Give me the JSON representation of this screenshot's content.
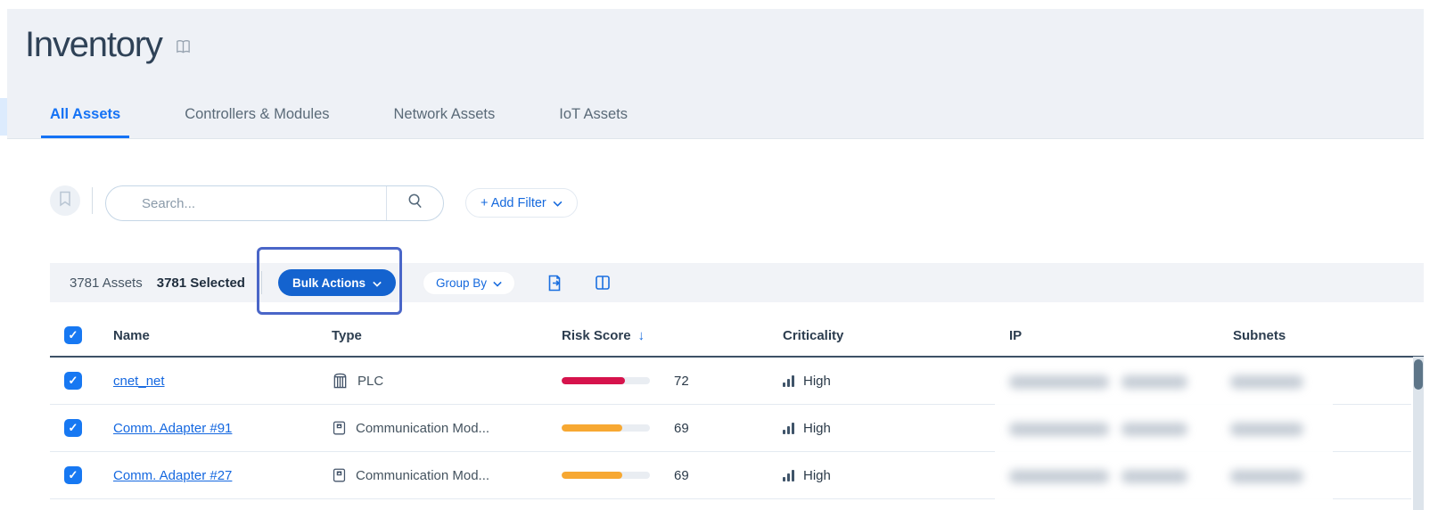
{
  "header": {
    "title": "Inventory"
  },
  "tabs": {
    "items": [
      {
        "label": "All Assets",
        "active": true
      },
      {
        "label": "Controllers & Modules",
        "active": false
      },
      {
        "label": "Network Assets",
        "active": false
      },
      {
        "label": "IoT Assets",
        "active": false
      }
    ]
  },
  "filter_bar": {
    "search_placeholder": "Search...",
    "add_filter_label": "+ Add Filter"
  },
  "toolbar": {
    "total_label": "3781 Assets",
    "selected_label": "3781 Selected",
    "bulk_actions_label": "Bulk Actions",
    "group_by_label": "Group By"
  },
  "table": {
    "columns": {
      "name": "Name",
      "type": "Type",
      "risk": "Risk Score",
      "criticality": "Criticality",
      "ip": "IP",
      "subnets": "Subnets"
    },
    "sort": {
      "column": "Risk Score",
      "direction": "desc",
      "arrow": "↓"
    },
    "rows": [
      {
        "name": "cnet_net",
        "type": "PLC",
        "risk_score": "72",
        "risk_value": 72,
        "risk_color": "#d6134c",
        "criticality": "High",
        "ip_redacted": true,
        "subnets_redacted": true
      },
      {
        "name": "Comm. Adapter #91",
        "type": "Communication Mod...",
        "risk_score": "69",
        "risk_value": 69,
        "risk_color": "#f7a832",
        "criticality": "High",
        "ip_redacted": true,
        "subnets_redacted": true
      },
      {
        "name": "Comm. Adapter #27",
        "type": "Communication Mod...",
        "risk_score": "69",
        "risk_value": 69,
        "risk_color": "#f7a832",
        "criticality": "High",
        "ip_redacted": true,
        "subnets_redacted": true
      }
    ]
  },
  "colors": {
    "accent_blue": "#1472f5",
    "bulk_button_blue": "#1463cf",
    "annotation_border": "#4a66c8",
    "risk_red": "#d6134c",
    "risk_orange": "#f7a832",
    "header_band": "#eef1f6"
  }
}
